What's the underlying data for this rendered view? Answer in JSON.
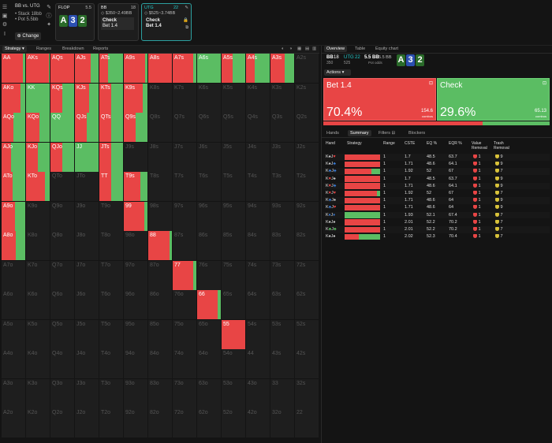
{
  "colors": {
    "raise": "#e84545",
    "check": "#5bbd63",
    "accent": "#2c9f9f",
    "bg": "#141414"
  },
  "topbar": {
    "positions": "BB vs. UTG",
    "stack": "• Stack 18bb",
    "pot": "• Pot 5.5bb",
    "change": "Change",
    "flop": {
      "label": "FLOP",
      "pot": "5.5",
      "cards": [
        "A",
        "3",
        "2"
      ]
    },
    "bb": {
      "label": "BB",
      "stack": "18",
      "odds": "$350~2.49BB",
      "action": "Check",
      "line2": "Bet 1.4"
    },
    "utg": {
      "label": "UTG",
      "stack": "22",
      "odds": "$525~3.74BB",
      "line1": "Check",
      "line2": "Bet 1.4"
    }
  },
  "left_tabs": [
    "Strategy",
    "Ranges",
    "Breakdown",
    "Reports"
  ],
  "grid": [
    {
      "h": "AA",
      "p": 0.9
    },
    {
      "h": "AKs",
      "p": 0.98
    },
    {
      "h": "AQs",
      "p": 1.0
    },
    {
      "h": "AJs",
      "p": 0.65
    },
    {
      "h": "ATs",
      "p": 0.35
    },
    {
      "h": "A9s",
      "p": 0.9
    },
    {
      "h": "A8s",
      "p": 1.0
    },
    {
      "h": "A7s",
      "p": 0.85
    },
    {
      "h": "A6s",
      "p": 0.0
    },
    {
      "h": "A5s",
      "p": 0.45
    },
    {
      "h": "A4s",
      "p": 0.35
    },
    {
      "h": "A3s",
      "p": 0.6
    },
    {
      "h": "A2s",
      "p": null
    },
    {
      "h": "AKo",
      "p": 0.8
    },
    {
      "h": "KK",
      "p": 0.0
    },
    {
      "h": "KQs",
      "p": 0.5
    },
    {
      "h": "KJs",
      "p": 0.6
    },
    {
      "h": "KTs",
      "p": 0.5
    },
    {
      "h": "K9s",
      "p": 0.8
    },
    {
      "h": "K8s",
      "p": null
    },
    {
      "h": "K7s",
      "p": null
    },
    {
      "h": "K6s",
      "p": null
    },
    {
      "h": "K5s",
      "p": null
    },
    {
      "h": "K4s",
      "p": null
    },
    {
      "h": "K3s",
      "p": null
    },
    {
      "h": "K2s",
      "p": null
    },
    {
      "h": "AQo",
      "p": 0.5
    },
    {
      "h": "KQo",
      "p": 0.55
    },
    {
      "h": "QQ",
      "p": 0.0
    },
    {
      "h": "QJs",
      "p": 0.5
    },
    {
      "h": "QTs",
      "p": 0.5
    },
    {
      "h": "Q9s",
      "p": 0.5
    },
    {
      "h": "Q8s",
      "p": null
    },
    {
      "h": "Q7s",
      "p": null
    },
    {
      "h": "Q6s",
      "p": null
    },
    {
      "h": "Q5s",
      "p": null
    },
    {
      "h": "Q4s",
      "p": null
    },
    {
      "h": "Q3s",
      "p": null
    },
    {
      "h": "Q2s",
      "p": null
    },
    {
      "h": "AJo",
      "p": 0.4
    },
    {
      "h": "KJo",
      "p": 0.5
    },
    {
      "h": "QJo",
      "p": 0.5
    },
    {
      "h": "JJ",
      "p": 0.0
    },
    {
      "h": "JTs",
      "p": 0.5
    },
    {
      "h": "J9s",
      "p": null
    },
    {
      "h": "J8s",
      "p": null
    },
    {
      "h": "J7s",
      "p": null
    },
    {
      "h": "J6s",
      "p": null
    },
    {
      "h": "J5s",
      "p": null
    },
    {
      "h": "J4s",
      "p": null
    },
    {
      "h": "J3s",
      "p": null
    },
    {
      "h": "J2s",
      "p": null
    },
    {
      "h": "ATo",
      "p": 0.45
    },
    {
      "h": "KTo",
      "p": 0.8
    },
    {
      "h": "QTo",
      "p": null
    },
    {
      "h": "JTo",
      "p": null
    },
    {
      "h": "TT",
      "p": 0.5
    },
    {
      "h": "T9s",
      "p": 0.7
    },
    {
      "h": "T8s",
      "p": null
    },
    {
      "h": "T7s",
      "p": null
    },
    {
      "h": "T6s",
      "p": null
    },
    {
      "h": "T5s",
      "p": null
    },
    {
      "h": "T4s",
      "p": null
    },
    {
      "h": "T3s",
      "p": null
    },
    {
      "h": "T2s",
      "p": null
    },
    {
      "h": "A9o",
      "p": 0.55
    },
    {
      "h": "K9o",
      "p": null
    },
    {
      "h": "Q9o",
      "p": null
    },
    {
      "h": "J9o",
      "p": null
    },
    {
      "h": "T9o",
      "p": null
    },
    {
      "h": "99",
      "p": 0.85
    },
    {
      "h": "98s",
      "p": null
    },
    {
      "h": "97s",
      "p": null
    },
    {
      "h": "96s",
      "p": null
    },
    {
      "h": "95s",
      "p": null
    },
    {
      "h": "94s",
      "p": null
    },
    {
      "h": "93s",
      "p": null
    },
    {
      "h": "92s",
      "p": null
    },
    {
      "h": "A8o",
      "p": 0.6
    },
    {
      "h": "K8o",
      "p": null
    },
    {
      "h": "Q8o",
      "p": null
    },
    {
      "h": "J8o",
      "p": null
    },
    {
      "h": "T8o",
      "p": null
    },
    {
      "h": "98o",
      "p": null
    },
    {
      "h": "88",
      "p": 0.9
    },
    {
      "h": "87s",
      "p": null
    },
    {
      "h": "86s",
      "p": null
    },
    {
      "h": "85s",
      "p": null
    },
    {
      "h": "84s",
      "p": null
    },
    {
      "h": "83s",
      "p": null
    },
    {
      "h": "82s",
      "p": null
    },
    {
      "h": "A7o",
      "p": null
    },
    {
      "h": "K7o",
      "p": null
    },
    {
      "h": "Q7o",
      "p": null
    },
    {
      "h": "J7o",
      "p": null
    },
    {
      "h": "T7o",
      "p": null
    },
    {
      "h": "97o",
      "p": null
    },
    {
      "h": "87o",
      "p": null
    },
    {
      "h": "77",
      "p": 0.85
    },
    {
      "h": "76s",
      "p": null
    },
    {
      "h": "75s",
      "p": null
    },
    {
      "h": "74s",
      "p": null
    },
    {
      "h": "73s",
      "p": null
    },
    {
      "h": "72s",
      "p": null
    },
    {
      "h": "A6o",
      "p": null
    },
    {
      "h": "K6o",
      "p": null
    },
    {
      "h": "Q6o",
      "p": null
    },
    {
      "h": "J6o",
      "p": null
    },
    {
      "h": "T6o",
      "p": null
    },
    {
      "h": "96o",
      "p": null
    },
    {
      "h": "86o",
      "p": null
    },
    {
      "h": "76o",
      "p": null
    },
    {
      "h": "66",
      "p": 0.85
    },
    {
      "h": "65s",
      "p": null
    },
    {
      "h": "64s",
      "p": null
    },
    {
      "h": "63s",
      "p": null
    },
    {
      "h": "62s",
      "p": null
    },
    {
      "h": "A5o",
      "p": null
    },
    {
      "h": "K5o",
      "p": null
    },
    {
      "h": "Q5o",
      "p": null
    },
    {
      "h": "J5o",
      "p": null
    },
    {
      "h": "T5o",
      "p": null
    },
    {
      "h": "95o",
      "p": null
    },
    {
      "h": "85o",
      "p": null
    },
    {
      "h": "75o",
      "p": null
    },
    {
      "h": "65o",
      "p": null
    },
    {
      "h": "55",
      "p": 1.0
    },
    {
      "h": "54s",
      "p": null
    },
    {
      "h": "53s",
      "p": null
    },
    {
      "h": "52s",
      "p": null
    },
    {
      "h": "A4o",
      "p": null
    },
    {
      "h": "K4o",
      "p": null
    },
    {
      "h": "Q4o",
      "p": null
    },
    {
      "h": "J4o",
      "p": null
    },
    {
      "h": "T4o",
      "p": null
    },
    {
      "h": "94o",
      "p": null
    },
    {
      "h": "84o",
      "p": null
    },
    {
      "h": "74o",
      "p": null
    },
    {
      "h": "64o",
      "p": null
    },
    {
      "h": "54o",
      "p": null
    },
    {
      "h": "44",
      "p": null
    },
    {
      "h": "43s",
      "p": null
    },
    {
      "h": "42s",
      "p": null
    },
    {
      "h": "A3o",
      "p": null
    },
    {
      "h": "K3o",
      "p": null
    },
    {
      "h": "Q3o",
      "p": null
    },
    {
      "h": "J3o",
      "p": null
    },
    {
      "h": "T3o",
      "p": null
    },
    {
      "h": "93o",
      "p": null
    },
    {
      "h": "83o",
      "p": null
    },
    {
      "h": "73o",
      "p": null
    },
    {
      "h": "63o",
      "p": null
    },
    {
      "h": "53o",
      "p": null
    },
    {
      "h": "43o",
      "p": null
    },
    {
      "h": "33",
      "p": null
    },
    {
      "h": "32s",
      "p": null
    },
    {
      "h": "A2o",
      "p": null
    },
    {
      "h": "K2o",
      "p": null
    },
    {
      "h": "Q2o",
      "p": null
    },
    {
      "h": "J2o",
      "p": null
    },
    {
      "h": "T2o",
      "p": null
    },
    {
      "h": "92o",
      "p": null
    },
    {
      "h": "82o",
      "p": null
    },
    {
      "h": "72o",
      "p": null
    },
    {
      "h": "62o",
      "p": null
    },
    {
      "h": "52o",
      "p": null
    },
    {
      "h": "42o",
      "p": null
    },
    {
      "h": "32o",
      "p": null
    },
    {
      "h": "22",
      "p": null
    }
  ],
  "right": {
    "tabs": [
      "Overview",
      "Table",
      "Equity chart"
    ],
    "info": {
      "pos1": "BB",
      "stack1": "18",
      "odds1": "350",
      "pos2": "UTG",
      "stack2": "22",
      "odds2": "525",
      "pot": "5.5 BB",
      "pot2": "5.5 BB",
      "pot_label": "Pot odds",
      "cards": [
        "A",
        "3",
        "2"
      ]
    },
    "actions_label": "Actions",
    "bet": {
      "label": "Bet 1.4",
      "pct": "70.4%",
      "combos": "154.6",
      "combos_label": "combos",
      "freq": 0.704
    },
    "check": {
      "label": "Check",
      "pct": "29.6%",
      "combos": "65.13",
      "combos_label": "combos",
      "freq": 0.296
    },
    "subtabs": [
      "Hands",
      "Summary",
      "Filters",
      "Blockers"
    ],
    "headers": [
      "Hand",
      "Strategy",
      "Range",
      "CSTE",
      "EQ %",
      "EQR %",
      "Value Removal",
      "Trash Removal"
    ],
    "rows": [
      {
        "hand": "K♠J♥",
        "sc": [
          "#ccc",
          "#e84545"
        ],
        "check": 0.0,
        "range": "1",
        "cste": "1.7",
        "eq": "48.5",
        "eqr": "63.7",
        "vr": "1",
        "tr": "9"
      },
      {
        "hand": "K♠J♣",
        "sc": [
          "#ccc",
          "#3a7bd5"
        ],
        "check": 0.0,
        "range": "1",
        "cste": "1.71",
        "eq": "48.6",
        "eqr": "64.1",
        "vr": "1",
        "tr": "9"
      },
      {
        "hand": "K♣J♣",
        "sc": [
          "#3a7bd5",
          "#3a7bd5"
        ],
        "check": 0.25,
        "range": "1",
        "cste": "1.92",
        "eq": "52",
        "eqr": "67",
        "vr": "1",
        "tr": "7"
      },
      {
        "hand": "K♥J♠",
        "sc": [
          "#e84545",
          "#ccc"
        ],
        "check": 0.0,
        "range": "1",
        "cste": "1.7",
        "eq": "48.5",
        "eqr": "63.7",
        "vr": "1",
        "tr": "9"
      },
      {
        "hand": "K♥J♣",
        "sc": [
          "#e84545",
          "#3a7bd5"
        ],
        "check": 0.0,
        "range": "1",
        "cste": "1.71",
        "eq": "48.6",
        "eqr": "64.1",
        "vr": "1",
        "tr": "9"
      },
      {
        "hand": "K♥J♥",
        "sc": [
          "#e84545",
          "#e84545"
        ],
        "check": 0.08,
        "range": "1",
        "cste": "1.92",
        "eq": "52",
        "eqr": "67",
        "vr": "1",
        "tr": "7"
      },
      {
        "hand": "K♣J♠",
        "sc": [
          "#3a7bd5",
          "#ccc"
        ],
        "check": 0.0,
        "range": "1",
        "cste": "1.71",
        "eq": "48.6",
        "eqr": "64",
        "vr": "1",
        "tr": "9"
      },
      {
        "hand": "K♣J♥",
        "sc": [
          "#3a7bd5",
          "#e84545"
        ],
        "check": 0.0,
        "range": "1",
        "cste": "1.71",
        "eq": "48.6",
        "eqr": "64",
        "vr": "1",
        "tr": "9"
      },
      {
        "hand": "K♦J♦",
        "sc": [
          "#3a7bd5",
          "#3a7bd5"
        ],
        "check": 1.0,
        "range": "1",
        "cste": "1.93",
        "eq": "52.1",
        "eqr": "67.4",
        "vr": "1",
        "tr": "7"
      },
      {
        "hand": "K♠J♠",
        "sc": [
          "#ccc",
          "#ccc"
        ],
        "check": 0.0,
        "range": "1",
        "cste": "2.01",
        "eq": "52.2",
        "eqr": "70.2",
        "vr": "1",
        "tr": "7"
      },
      {
        "hand": "K♣J♣",
        "sc": [
          "#5bbd63",
          "#5bbd63"
        ],
        "check": 0.0,
        "range": "1",
        "cste": "2.01",
        "eq": "52.2",
        "eqr": "70.2",
        "vr": "1",
        "tr": "7"
      },
      {
        "hand": "K♠J♠",
        "sc": [
          "#ccc",
          "#ccc"
        ],
        "check": 0.6,
        "range": "1",
        "cste": "2.02",
        "eq": "52.3",
        "eqr": "70.4",
        "vr": "1",
        "tr": "7"
      }
    ]
  }
}
